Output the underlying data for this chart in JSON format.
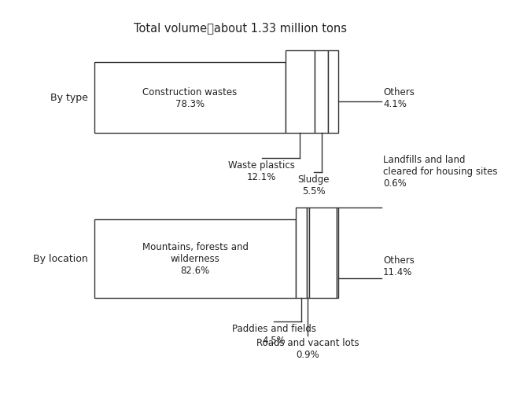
{
  "title": "Total volume：about 1.33 million tons",
  "bg_color": "#ffffff",
  "edge_color": "#333333",
  "text_color": "#222222",
  "font_size": 8.5,
  "title_font_size": 10.5,
  "top_bar": {
    "label": "By type",
    "segments": [
      {
        "name": "Construction wastes\n78.3%",
        "value": 78.3
      },
      {
        "name": "Waste plastics\n12.1%",
        "value": 12.1
      },
      {
        "name": "Sludge\n5.5%",
        "value": 5.5
      },
      {
        "name": "Others\n4.1%",
        "value": 4.1
      }
    ]
  },
  "bottom_bar": {
    "label": "By location",
    "segments": [
      {
        "name": "Mountains, forests and\nwilderness\n82.6%",
        "value": 82.6
      },
      {
        "name": "Paddies and fields\n4.5%",
        "value": 4.5
      },
      {
        "name": "Roads and vacant lots\n0.9%",
        "value": 0.9
      },
      {
        "name": "Others\n11.4%",
        "value": 11.4
      },
      {
        "name": "Landfills and land\ncleared for housing sites\n0.6%",
        "value": 0.6
      }
    ]
  }
}
